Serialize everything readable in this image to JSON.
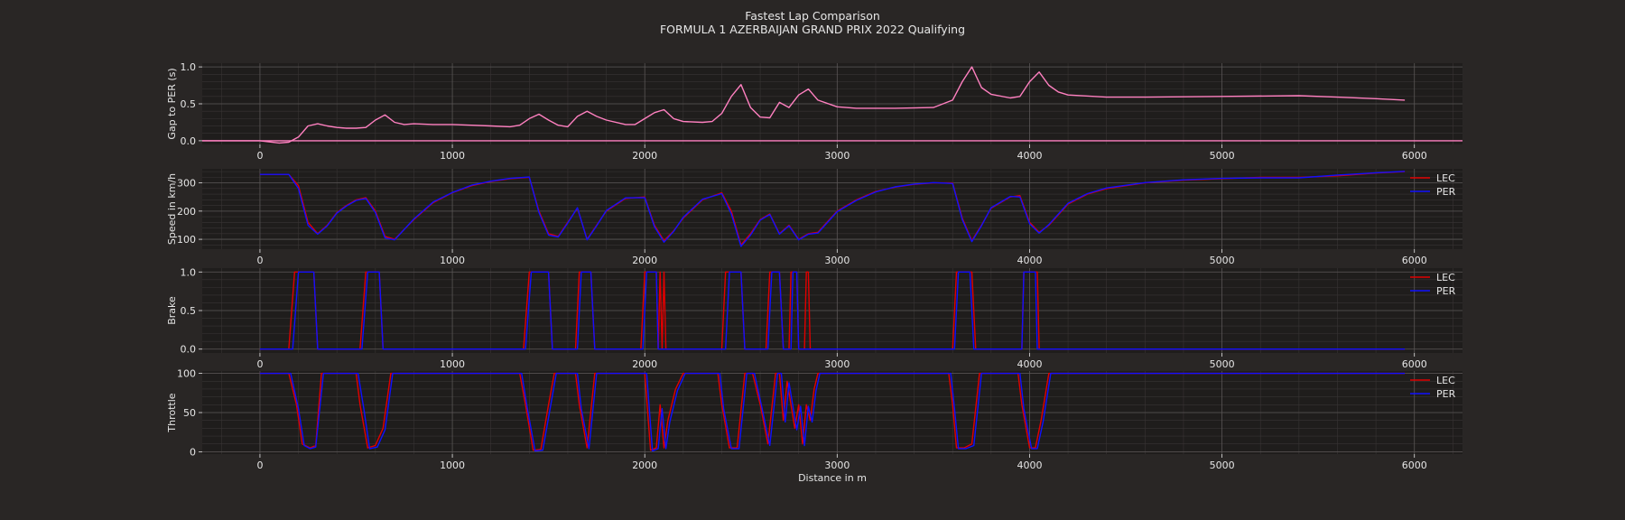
{
  "figure": {
    "title": "Fastest Lap Comparison",
    "subtitle": "FORMULA 1 AZERBAIJAN GRAND PRIX 2022 Qualifying",
    "xlabel": "Distance in m",
    "colors": {
      "background": "#292625",
      "panel": "#1f1d1c",
      "grid_major": "#5a5656",
      "grid_minor": "#383434",
      "text": "#e6e6e6"
    }
  },
  "chart_data": [
    {
      "type": "line",
      "ylabel": "Gap to PER (s)",
      "ylim": [
        -0.05,
        1.05
      ],
      "yticks": [
        0.0,
        0.5,
        1.0
      ],
      "xlim": [
        -300,
        6250
      ],
      "xticks": [
        0,
        1000,
        2000,
        3000,
        4000,
        5000,
        6000
      ],
      "legend": null,
      "series": [
        {
          "color": "#ff80c0",
          "x": [
            -300,
            0,
            100,
            150,
            200,
            250,
            300,
            350,
            400,
            450,
            500,
            550,
            600,
            650,
            700,
            750,
            800,
            900,
            1000,
            1100,
            1200,
            1300,
            1350,
            1400,
            1450,
            1500,
            1550,
            1600,
            1650,
            1700,
            1750,
            1800,
            1900,
            1950,
            2000,
            2050,
            2100,
            2150,
            2200,
            2300,
            2350,
            2400,
            2450,
            2500,
            2550,
            2600,
            2650,
            2700,
            2750,
            2800,
            2850,
            2900,
            3000,
            3100,
            3300,
            3500,
            3600,
            3650,
            3700,
            3750,
            3800,
            3900,
            3950,
            4000,
            4050,
            4100,
            4150,
            4200,
            4400,
            4600,
            5000,
            5400,
            5600,
            5800,
            5950
          ],
          "y": [
            0.0,
            0.0,
            -0.03,
            -0.02,
            0.05,
            0.2,
            0.23,
            0.2,
            0.18,
            0.17,
            0.17,
            0.18,
            0.28,
            0.35,
            0.25,
            0.22,
            0.23,
            0.22,
            0.22,
            0.21,
            0.2,
            0.19,
            0.21,
            0.3,
            0.36,
            0.28,
            0.21,
            0.19,
            0.33,
            0.4,
            0.33,
            0.28,
            0.22,
            0.22,
            0.3,
            0.38,
            0.42,
            0.3,
            0.26,
            0.25,
            0.26,
            0.37,
            0.6,
            0.76,
            0.45,
            0.32,
            0.31,
            0.52,
            0.45,
            0.62,
            0.7,
            0.55,
            0.46,
            0.44,
            0.44,
            0.45,
            0.55,
            0.8,
            1.0,
            0.72,
            0.63,
            0.58,
            0.6,
            0.8,
            0.93,
            0.75,
            0.66,
            0.62,
            0.59,
            0.59,
            0.6,
            0.61,
            0.59,
            0.57,
            0.55
          ]
        },
        {
          "color": "#ff80c0",
          "x": [
            -300,
            6250
          ],
          "y": [
            0.0,
            0.0
          ]
        }
      ]
    },
    {
      "type": "line",
      "ylabel": "Speed in km/h",
      "ylim": [
        65,
        350
      ],
      "yticks": [
        100,
        200,
        300
      ],
      "xlim": [
        -300,
        6250
      ],
      "xticks": [
        0,
        1000,
        2000,
        3000,
        4000,
        5000,
        6000
      ],
      "legend": "right",
      "series": [
        {
          "name": "LEC",
          "color": "#e00000",
          "x": [
            0,
            150,
            200,
            250,
            300,
            350,
            400,
            450,
            500,
            550,
            600,
            650,
            700,
            800,
            900,
            1000,
            1100,
            1200,
            1300,
            1400,
            1450,
            1500,
            1550,
            1600,
            1650,
            1700,
            1750,
            1800,
            1900,
            2000,
            2050,
            2100,
            2150,
            2200,
            2300,
            2400,
            2450,
            2500,
            2550,
            2600,
            2650,
            2700,
            2750,
            2800,
            2850,
            2900,
            3000,
            3100,
            3200,
            3300,
            3400,
            3500,
            3600,
            3650,
            3700,
            3750,
            3800,
            3900,
            3950,
            4000,
            4050,
            4100,
            4200,
            4300,
            4400,
            4600,
            4800,
            5000,
            5200,
            5400,
            5600,
            5800,
            5950
          ],
          "y": [
            330,
            330,
            290,
            160,
            120,
            150,
            195,
            220,
            240,
            248,
            200,
            110,
            100,
            170,
            230,
            265,
            290,
            305,
            315,
            320,
            200,
            120,
            110,
            160,
            210,
            100,
            150,
            200,
            245,
            250,
            150,
            95,
            130,
            175,
            240,
            265,
            200,
            80,
            120,
            170,
            190,
            120,
            150,
            100,
            120,
            125,
            200,
            240,
            270,
            285,
            295,
            300,
            300,
            175,
            95,
            150,
            210,
            250,
            255,
            160,
            125,
            150,
            225,
            260,
            280,
            300,
            310,
            315,
            320,
            320,
            325,
            335,
            340
          ]
        },
        {
          "name": "PER",
          "color": "#1010ff",
          "x": [
            0,
            150,
            200,
            250,
            300,
            350,
            400,
            450,
            500,
            550,
            600,
            650,
            700,
            800,
            900,
            1000,
            1100,
            1200,
            1300,
            1400,
            1450,
            1500,
            1550,
            1600,
            1650,
            1700,
            1750,
            1800,
            1900,
            2000,
            2050,
            2100,
            2150,
            2200,
            2300,
            2400,
            2450,
            2500,
            2550,
            2600,
            2650,
            2700,
            2750,
            2800,
            2850,
            2900,
            3000,
            3100,
            3200,
            3300,
            3400,
            3500,
            3600,
            3650,
            3700,
            3750,
            3800,
            3900,
            3950,
            4000,
            4050,
            4100,
            4200,
            4300,
            4400,
            4600,
            4800,
            5000,
            5200,
            5400,
            5600,
            5800,
            5950
          ],
          "y": [
            330,
            330,
            280,
            150,
            118,
            148,
            193,
            218,
            238,
            245,
            195,
            105,
            98,
            172,
            232,
            266,
            292,
            306,
            316,
            321,
            195,
            115,
            108,
            158,
            212,
            98,
            148,
            202,
            247,
            248,
            145,
            90,
            128,
            178,
            242,
            262,
            190,
            75,
            115,
            168,
            188,
            118,
            148,
            98,
            118,
            122,
            198,
            238,
            268,
            286,
            296,
            301,
            298,
            170,
            92,
            148,
            212,
            252,
            250,
            155,
            122,
            152,
            228,
            262,
            282,
            301,
            311,
            316,
            318,
            318,
            328,
            336,
            341
          ]
        }
      ]
    },
    {
      "type": "line",
      "ylabel": "Brake",
      "ylim": [
        -0.05,
        1.05
      ],
      "yticks": [
        0.0,
        0.5,
        1.0
      ],
      "xlim": [
        -300,
        6250
      ],
      "xticks": [
        0,
        1000,
        2000,
        3000,
        4000,
        5000,
        6000
      ],
      "legend": "right",
      "series": [
        {
          "name": "LEC",
          "color": "#e00000",
          "x": [
            0,
            150,
            180,
            280,
            300,
            520,
            550,
            620,
            640,
            1370,
            1400,
            1500,
            1520,
            1640,
            1660,
            1720,
            1740,
            1980,
            2000,
            2060,
            2070,
            2080,
            2090,
            2100,
            2110,
            2120,
            2400,
            2420,
            2500,
            2520,
            2630,
            2650,
            2700,
            2720,
            2750,
            2760,
            2790,
            2800,
            2830,
            2840,
            2850,
            2860,
            3600,
            3620,
            3700,
            3720,
            3960,
            3970,
            4040,
            4050,
            5950
          ],
          "y": [
            0,
            0,
            1,
            1,
            0,
            0,
            1,
            1,
            0,
            0,
            1,
            1,
            0,
            0,
            1,
            1,
            0,
            0,
            1,
            1,
            0,
            1,
            0,
            1,
            0,
            0,
            0,
            1,
            1,
            0,
            0,
            1,
            1,
            0,
            0,
            1,
            1,
            0,
            0,
            1,
            1,
            0,
            0,
            1,
            1,
            0,
            0,
            1,
            1,
            0,
            0
          ]
        },
        {
          "name": "PER",
          "color": "#1010ff",
          "x": [
            0,
            170,
            200,
            280,
            300,
            530,
            560,
            620,
            640,
            1380,
            1410,
            1500,
            1520,
            1650,
            1670,
            1720,
            1740,
            1990,
            2010,
            2060,
            2070,
            2420,
            2440,
            2500,
            2520,
            2640,
            2660,
            2700,
            2720,
            2760,
            2770,
            2790,
            2800,
            3610,
            3630,
            3690,
            3710,
            3960,
            3970,
            4030,
            4040,
            5950
          ],
          "y": [
            0,
            0,
            1,
            1,
            0,
            0,
            1,
            1,
            0,
            0,
            1,
            1,
            0,
            0,
            1,
            1,
            0,
            0,
            1,
            1,
            0,
            0,
            1,
            1,
            0,
            0,
            1,
            1,
            0,
            0,
            1,
            1,
            0,
            0,
            1,
            1,
            0,
            0,
            1,
            1,
            0,
            0
          ]
        }
      ]
    },
    {
      "type": "line",
      "ylabel": "Throttle",
      "ylim": [
        -3,
        103
      ],
      "yticks": [
        0,
        50,
        100
      ],
      "xlim": [
        -300,
        6250
      ],
      "xticks": [
        0,
        1000,
        2000,
        3000,
        4000,
        5000,
        6000
      ],
      "legend": "right",
      "series": [
        {
          "name": "LEC",
          "color": "#e00000",
          "x": [
            0,
            150,
            190,
            220,
            260,
            290,
            320,
            500,
            520,
            560,
            600,
            640,
            680,
            1350,
            1380,
            1420,
            1460,
            1500,
            1530,
            1640,
            1660,
            1700,
            1740,
            2000,
            2030,
            2060,
            2080,
            2100,
            2120,
            2160,
            2200,
            2380,
            2400,
            2440,
            2480,
            2520,
            2560,
            2600,
            2640,
            2680,
            2700,
            2720,
            2740,
            2780,
            2800,
            2820,
            2840,
            2860,
            2880,
            2900,
            3580,
            3600,
            3620,
            3660,
            3700,
            3740,
            3780,
            3940,
            3960,
            4000,
            4030,
            4060,
            4100,
            5950
          ],
          "y": [
            100,
            100,
            60,
            10,
            5,
            8,
            100,
            100,
            60,
            5,
            8,
            30,
            100,
            100,
            60,
            2,
            3,
            60,
            100,
            100,
            60,
            5,
            100,
            100,
            2,
            5,
            60,
            5,
            40,
            80,
            100,
            100,
            60,
            5,
            5,
            100,
            100,
            60,
            10,
            100,
            100,
            40,
            90,
            30,
            60,
            10,
            60,
            40,
            80,
            100,
            100,
            60,
            5,
            5,
            10,
            100,
            100,
            100,
            60,
            5,
            5,
            40,
            100,
            100
          ]
        },
        {
          "name": "PER",
          "color": "#1010ff",
          "x": [
            0,
            160,
            200,
            230,
            260,
            290,
            330,
            510,
            540,
            570,
            610,
            650,
            690,
            1360,
            1390,
            1430,
            1470,
            1510,
            1540,
            1650,
            1670,
            1710,
            1750,
            2010,
            2040,
            2070,
            2090,
            2110,
            2130,
            2170,
            2210,
            2390,
            2410,
            2450,
            2490,
            2530,
            2570,
            2610,
            2650,
            2690,
            2710,
            2730,
            2750,
            2790,
            2810,
            2830,
            2850,
            2870,
            2890,
            2910,
            3590,
            3610,
            3630,
            3670,
            3710,
            3750,
            3790,
            3950,
            3970,
            4010,
            4040,
            4070,
            4110,
            5950
          ],
          "y": [
            100,
            100,
            55,
            8,
            4,
            6,
            100,
            100,
            55,
            4,
            6,
            28,
            100,
            100,
            55,
            1,
            2,
            58,
            100,
            100,
            55,
            4,
            100,
            100,
            1,
            4,
            55,
            4,
            38,
            78,
            100,
            100,
            55,
            4,
            4,
            100,
            100,
            55,
            8,
            100,
            100,
            38,
            88,
            28,
            58,
            8,
            58,
            38,
            78,
            100,
            100,
            55,
            4,
            4,
            8,
            100,
            100,
            100,
            55,
            4,
            4,
            38,
            100,
            100
          ]
        }
      ]
    }
  ]
}
